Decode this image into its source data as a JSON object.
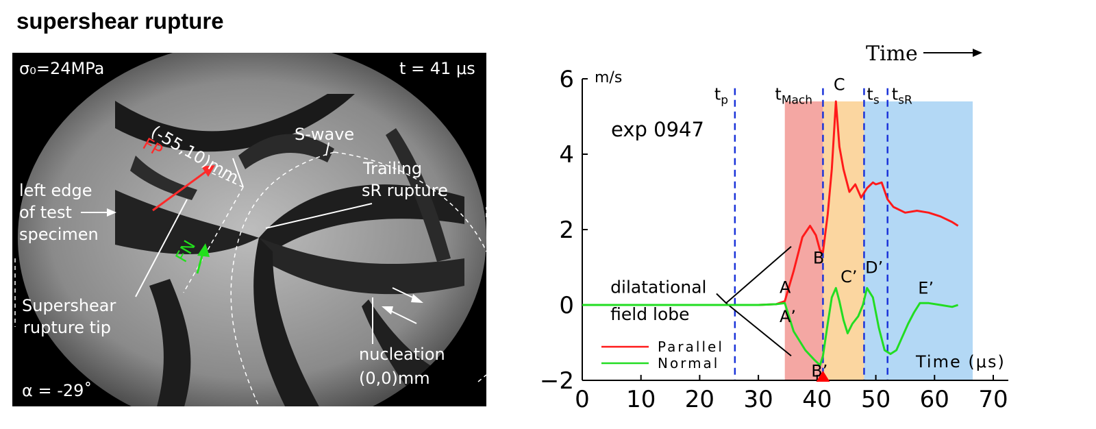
{
  "title": "supershear rupture",
  "photo": {
    "labels": {
      "sigma": "σ₀=24MPa",
      "time": "t = 41 μs",
      "alpha": "α = -29˚",
      "coords": "(-55,10)mm",
      "fp": "FP",
      "fn": "FN",
      "swave": "S-wave",
      "trailing1": "Trailing",
      "trailing2": "sR rupture",
      "leftedge1": "left edge",
      "leftedge2": "of test",
      "leftedge3": "specimen",
      "tip1": "Supershear",
      "tip2": "rupture tip",
      "nuc1": "nucleation",
      "nuc2": "(0,0)mm"
    },
    "colors": {
      "fp": "#ff2a2a",
      "fn": "#22e01c"
    }
  },
  "chart_data": {
    "type": "line",
    "top_label": "Time",
    "ylabel_unit": "m/s",
    "xlabel": "Time (μs)",
    "experiment": "exp 0947",
    "xlim": [
      0,
      70
    ],
    "ylim": [
      -2,
      6
    ],
    "xticks": [
      0,
      10,
      20,
      30,
      40,
      50,
      60,
      70
    ],
    "yticks": [
      -2,
      0,
      2,
      4,
      6
    ],
    "legend": [
      {
        "name": "Parallel",
        "color": "#ff1a1a"
      },
      {
        "name": "Normal",
        "color": "#22dd22"
      }
    ],
    "vlines": [
      {
        "x": 26,
        "label": "t",
        "sub": "p"
      },
      {
        "x": 41,
        "label": "t",
        "sub": "Mach"
      },
      {
        "x": 48,
        "label": "t",
        "sub": "s"
      },
      {
        "x": 52,
        "label": "t",
        "sub": "sR"
      }
    ],
    "bands": [
      {
        "x0": 34.5,
        "x1": 41,
        "color": "#f4a7a3"
      },
      {
        "x0": 41,
        "x1": 48,
        "color": "#fbd6a0"
      },
      {
        "x0": 48,
        "x1": 66.5,
        "color": "#b3d8f5"
      }
    ],
    "series": [
      {
        "name": "Parallel",
        "x": [
          0,
          10,
          20,
          26,
          30,
          33,
          34.5,
          36,
          37.5,
          38.8,
          39.8,
          40.5,
          41,
          41.8,
          42.5,
          43.2,
          43.8,
          44.5,
          45.5,
          46.5,
          47.5,
          48.5,
          49.5,
          50,
          51,
          52,
          53,
          55,
          57,
          59,
          61,
          63,
          64
        ],
        "y": [
          0.0,
          0.0,
          0.0,
          0.0,
          0.0,
          0.02,
          0.1,
          0.9,
          1.8,
          2.1,
          1.85,
          1.45,
          1.4,
          2.4,
          3.6,
          5.4,
          4.2,
          3.6,
          3.0,
          3.2,
          2.85,
          3.1,
          3.25,
          3.2,
          3.25,
          2.8,
          2.6,
          2.45,
          2.5,
          2.45,
          2.35,
          2.2,
          2.1
        ]
      },
      {
        "name": "Normal",
        "x": [
          0,
          10,
          20,
          26,
          30,
          33,
          34.5,
          36,
          38,
          39.5,
          40.5,
          41,
          41.8,
          42.5,
          43.2,
          43.8,
          44.5,
          45.2,
          46,
          47,
          47.8,
          48.5,
          49.5,
          50.5,
          51.5,
          52.5,
          53.5,
          54.5,
          55.5,
          56.5,
          57.5,
          59,
          61,
          63,
          64
        ],
        "y": [
          0.0,
          0.0,
          0.0,
          0.0,
          0.0,
          0.02,
          0.05,
          -0.7,
          -1.2,
          -1.45,
          -1.6,
          -1.35,
          -0.5,
          0.2,
          0.45,
          0.1,
          -0.4,
          -0.75,
          -0.5,
          -0.3,
          0.0,
          0.45,
          0.2,
          -0.6,
          -1.2,
          -1.3,
          -1.2,
          -0.85,
          -0.5,
          -0.2,
          0.05,
          0.05,
          0.0,
          -0.05,
          0.0
        ]
      }
    ],
    "annotations": [
      {
        "text": "A",
        "x": 33.6,
        "y": 0.32,
        "color": "#000000"
      },
      {
        "text": "A’",
        "x": 33.6,
        "y": -0.45,
        "color": "#000000"
      },
      {
        "text": "B",
        "x": 39.3,
        "y": 1.1,
        "color": "#000000"
      },
      {
        "text": "B’",
        "x": 39,
        "y": -1.9,
        "color": "#000000"
      },
      {
        "text": "C",
        "x": 42.8,
        "y": 5.7,
        "color": "#000000"
      },
      {
        "text": "C’",
        "x": 44,
        "y": 0.6,
        "color": "#000000"
      },
      {
        "text": "D’",
        "x": 48.2,
        "y": 0.85,
        "color": "#000000"
      },
      {
        "text": "E’",
        "x": 57.2,
        "y": 0.3,
        "color": "#000000"
      },
      {
        "text": "dilatational",
        "x": 4.8,
        "y": 0.32,
        "color": "#000000"
      },
      {
        "text": "field lobe",
        "x": 4.8,
        "y": -0.4,
        "color": "#000000"
      }
    ]
  }
}
